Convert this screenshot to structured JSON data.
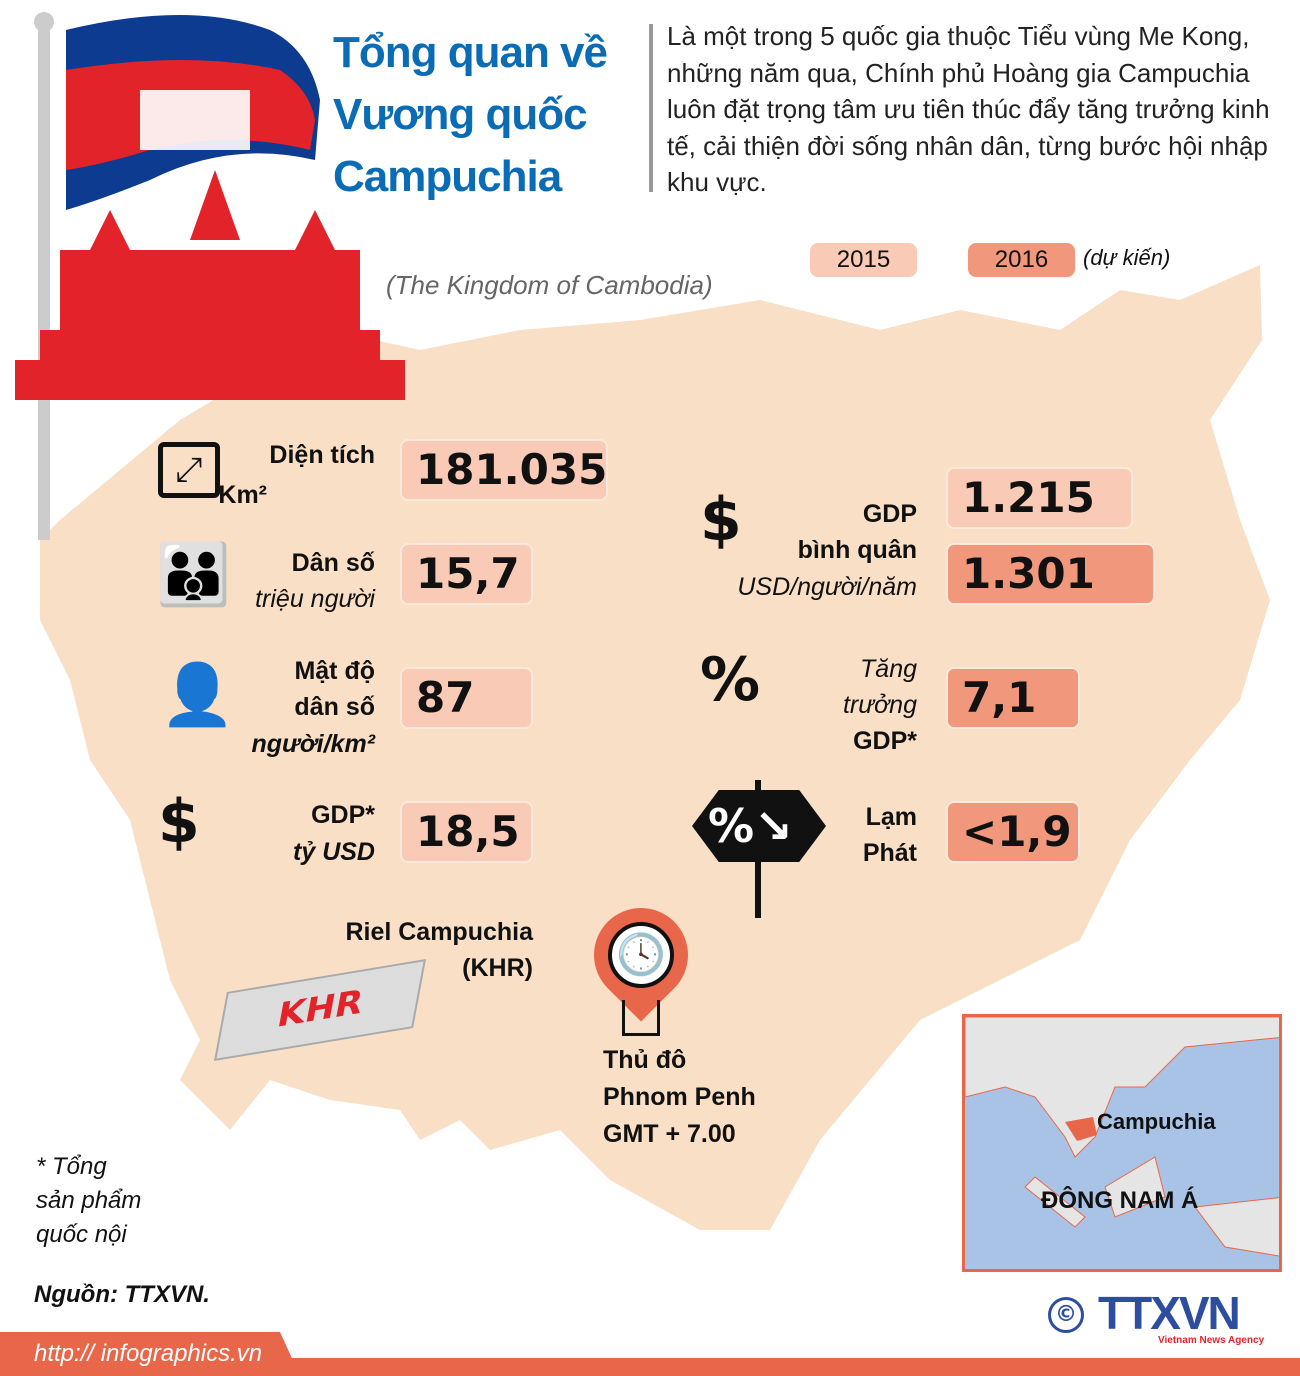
{
  "header": {
    "title_lines": [
      "Tổng quan về",
      "Vương quốc",
      "Campuchia"
    ],
    "subtitle": "(The Kingdom of Cambodia)",
    "intro": "Là một trong 5 quốc gia thuộc Tiểu vùng Me Kong, những năm qua, Chính phủ Hoàng gia Campuchia luôn đặt trọng tâm ưu tiên thúc đẩy tăng trưởng kinh tế, cải thiện đời sống nhân dân, từng bước hội nhập khu vực."
  },
  "legend": {
    "y2015": "2015",
    "y2016": "2016",
    "y2016_note": "(dự kiến)"
  },
  "colors": {
    "title": "#0b6cb6",
    "y2015": "#f9cbb6",
    "y2016": "#f1977c",
    "accent": "#e8674a",
    "map": "#f9dfc6"
  },
  "stats": {
    "area": {
      "label": "Diện tích",
      "unit": "Km²",
      "value": "181.035",
      "icon": "area-arrows-icon"
    },
    "population": {
      "label": "Dân số",
      "unit": "triệu người",
      "value": "15,7",
      "icon": "people-group-icon"
    },
    "density": {
      "label1": "Mật độ",
      "label2": "dân số",
      "unit": "người/km²",
      "value": "87",
      "icon": "person-on-land-icon"
    },
    "gdp": {
      "label": "GDP*",
      "unit": "tỷ USD",
      "value": "18,5",
      "icon": "people-dollar-icon"
    },
    "gdp_per_capita": {
      "label1": "GDP",
      "label2": "bình quân",
      "unit": "USD/người/năm",
      "value_2015": "1.215",
      "value_2016": "1.301",
      "icon": "person-dollar-icon"
    },
    "growth": {
      "label1": "Tăng",
      "label2": "trưởng",
      "label3": "GDP*",
      "value": "7,1",
      "icon": "people-percent-icon"
    },
    "inflation": {
      "label1": "Lạm",
      "label2": "Phát",
      "value": "<1,9",
      "icon": "percent-sign-icon"
    }
  },
  "currency": {
    "name": "Riel Campuchia",
    "code": "(KHR)",
    "banknote": "KHR"
  },
  "capital": {
    "label": "Thủ đô",
    "city": "Phnom Penh",
    "tz": "GMT + 7.00"
  },
  "inset": {
    "country": "Campuchia",
    "region": "ĐÔNG NAM Á"
  },
  "footnote": {
    "lines": [
      "* Tổng",
      "sản phẩm",
      "quốc nội"
    ]
  },
  "source": "Nguồn: TTXVN.",
  "link": "http:// infographics.vn",
  "logo": {
    "copyright": "©",
    "name": "TTXVN",
    "tagline": "Vietnam News Agency"
  }
}
